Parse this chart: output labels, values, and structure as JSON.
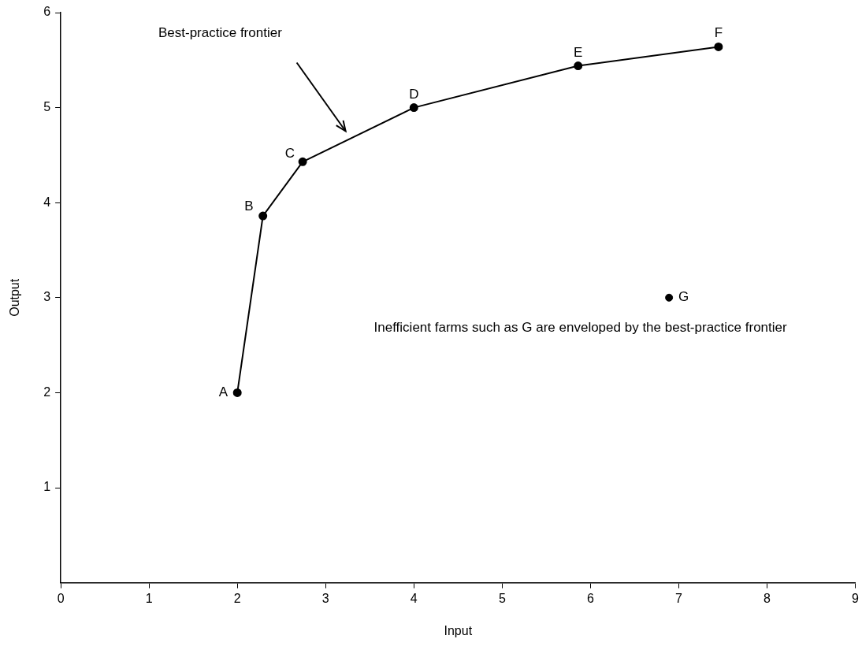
{
  "chart_data": {
    "type": "line",
    "xlabel": "Input",
    "ylabel": "Output",
    "xlim": [
      0,
      9
    ],
    "ylim": [
      0,
      6
    ],
    "xticks": [
      0,
      1,
      2,
      3,
      4,
      5,
      6,
      7,
      8,
      9
    ],
    "yticks": [
      1,
      2,
      3,
      4,
      5,
      6
    ],
    "marker": "circle",
    "line_style": "solid",
    "series": [
      {
        "color": "#000000",
        "x": [
          2,
          2.29,
          2.74,
          4,
          5.86,
          7.45
        ],
        "values": [
          2,
          3.86,
          4.43,
          5,
          5.44,
          5.64
        ]
      },
      {
        "type": "scatter",
        "color": "#000000",
        "x": [
          6.89
        ],
        "values": [
          3
        ]
      }
    ],
    "annotations": [
      {
        "text": "A",
        "x": 2,
        "y": 2
      },
      {
        "text": "B",
        "x": 2.29,
        "y": 3.86
      },
      {
        "text": "C",
        "x": 2.74,
        "y": 4.43
      },
      {
        "text": "D",
        "x": 4,
        "y": 5
      },
      {
        "text": "E",
        "x": 5.86,
        "y": 5.44
      },
      {
        "text": "F",
        "x": 7.45,
        "y": 5.64
      },
      {
        "text": "G",
        "x": 6.89,
        "y": 3
      },
      "Best-practice frontier",
      "Inefficient farms such as G are enveloped by the best-practice frontier"
    ]
  }
}
